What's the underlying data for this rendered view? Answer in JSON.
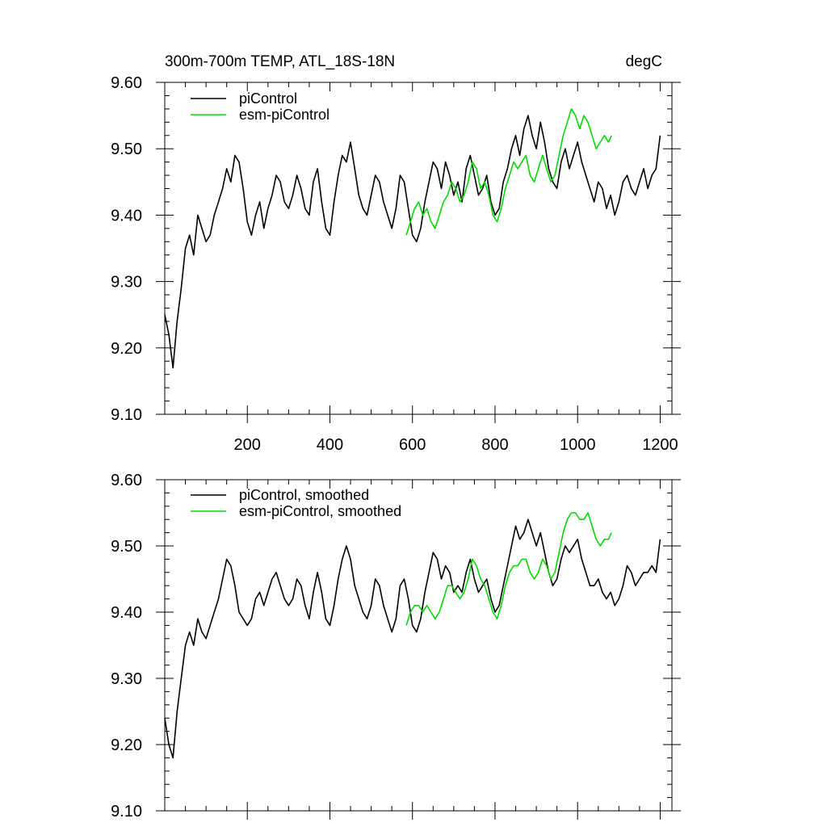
{
  "title_left": "300m-700m TEMP, ATL_18S-18N",
  "title_right": "degC",
  "colors": {
    "picontrol": "#000000",
    "esm_picontrol": "#00dd00"
  },
  "chart_data": [
    {
      "type": "line",
      "panel": "top",
      "title": "300m-700m TEMP, ATL_18S-18N",
      "units": "degC",
      "xlim": [
        0,
        1205
      ],
      "ylim": [
        9.1,
        9.6
      ],
      "xticks": [
        200,
        400,
        600,
        800,
        1000,
        1200
      ],
      "yticks": [
        9.1,
        9.2,
        9.3,
        9.4,
        9.5,
        9.6
      ],
      "ytick_labels": [
        "9.10",
        "9.20",
        "9.30",
        "9.40",
        "9.50",
        "9.60"
      ],
      "grid": false,
      "legend_position": "top-left",
      "series": [
        {
          "name": "piControl",
          "color": "#000000",
          "x": [
            0,
            10,
            20,
            30,
            40,
            50,
            60,
            70,
            80,
            90,
            100,
            110,
            120,
            130,
            140,
            150,
            160,
            170,
            180,
            190,
            200,
            210,
            220,
            230,
            240,
            250,
            260,
            270,
            280,
            290,
            300,
            310,
            320,
            330,
            340,
            350,
            360,
            370,
            380,
            390,
            400,
            410,
            420,
            430,
            440,
            450,
            460,
            470,
            480,
            490,
            500,
            510,
            520,
            530,
            540,
            550,
            560,
            570,
            580,
            590,
            600,
            610,
            620,
            630,
            640,
            650,
            660,
            670,
            680,
            690,
            700,
            710,
            720,
            730,
            740,
            750,
            760,
            770,
            780,
            790,
            800,
            810,
            820,
            830,
            840,
            850,
            860,
            870,
            880,
            890,
            900,
            910,
            920,
            930,
            940,
            950,
            960,
            970,
            980,
            990,
            1000,
            1010,
            1020,
            1030,
            1040,
            1050,
            1060,
            1070,
            1080,
            1090,
            1100,
            1110,
            1120,
            1130,
            1140,
            1150,
            1160,
            1170,
            1180,
            1190,
            1200
          ],
          "y": [
            9.25,
            9.22,
            9.17,
            9.24,
            9.29,
            9.35,
            9.37,
            9.34,
            9.4,
            9.38,
            9.36,
            9.37,
            9.4,
            9.42,
            9.44,
            9.47,
            9.45,
            9.49,
            9.48,
            9.44,
            9.39,
            9.37,
            9.4,
            9.42,
            9.38,
            9.41,
            9.43,
            9.46,
            9.45,
            9.42,
            9.41,
            9.43,
            9.46,
            9.44,
            9.41,
            9.4,
            9.45,
            9.47,
            9.42,
            9.38,
            9.37,
            9.42,
            9.46,
            9.49,
            9.48,
            9.51,
            9.47,
            9.43,
            9.41,
            9.4,
            9.43,
            9.46,
            9.45,
            9.42,
            9.4,
            9.38,
            9.41,
            9.46,
            9.45,
            9.41,
            9.37,
            9.36,
            9.38,
            9.42,
            9.45,
            9.48,
            9.47,
            9.44,
            9.48,
            9.46,
            9.43,
            9.45,
            9.42,
            9.47,
            9.49,
            9.46,
            9.43,
            9.44,
            9.46,
            9.42,
            9.4,
            9.41,
            9.45,
            9.47,
            9.5,
            9.52,
            9.49,
            9.53,
            9.55,
            9.52,
            9.5,
            9.54,
            9.51,
            9.47,
            9.45,
            9.44,
            9.48,
            9.5,
            9.47,
            9.49,
            9.51,
            9.48,
            9.46,
            9.44,
            9.42,
            9.45,
            9.44,
            9.41,
            9.43,
            9.4,
            9.42,
            9.45,
            9.46,
            9.44,
            9.43,
            9.45,
            9.47,
            9.44,
            9.46,
            9.47,
            9.52
          ]
        },
        {
          "name": "esm-piControl",
          "color": "#00dd00",
          "x": [
            585,
            595,
            605,
            615,
            625,
            635,
            645,
            655,
            665,
            675,
            685,
            695,
            705,
            715,
            725,
            735,
            745,
            755,
            765,
            775,
            785,
            795,
            805,
            815,
            825,
            835,
            845,
            855,
            865,
            875,
            885,
            895,
            905,
            915,
            925,
            935,
            945,
            955,
            965,
            975,
            985,
            995,
            1005,
            1015,
            1025,
            1035,
            1045,
            1055,
            1065,
            1075,
            1082
          ],
          "y": [
            9.37,
            9.39,
            9.41,
            9.42,
            9.4,
            9.41,
            9.39,
            9.38,
            9.4,
            9.42,
            9.43,
            9.45,
            9.44,
            9.42,
            9.43,
            9.45,
            9.48,
            9.47,
            9.44,
            9.45,
            9.43,
            9.4,
            9.39,
            9.41,
            9.44,
            9.46,
            9.48,
            9.47,
            9.48,
            9.49,
            9.46,
            9.45,
            9.47,
            9.49,
            9.47,
            9.45,
            9.46,
            9.49,
            9.52,
            9.54,
            9.56,
            9.55,
            9.53,
            9.55,
            9.54,
            9.52,
            9.5,
            9.51,
            9.52,
            9.51,
            9.52
          ]
        }
      ]
    },
    {
      "type": "line",
      "panel": "bottom",
      "xlim": [
        0,
        1205
      ],
      "ylim": [
        9.1,
        9.6
      ],
      "yticks": [
        9.1,
        9.2,
        9.3,
        9.4,
        9.5,
        9.6
      ],
      "ytick_labels": [
        "9.10",
        "9.20",
        "9.30",
        "9.40",
        "9.50",
        "9.60"
      ],
      "grid": false,
      "legend_position": "top-left",
      "series": [
        {
          "name": "piControl, smoothed",
          "color": "#000000",
          "x": [
            0,
            10,
            20,
            30,
            40,
            50,
            60,
            70,
            80,
            90,
            100,
            110,
            120,
            130,
            140,
            150,
            160,
            170,
            180,
            190,
            200,
            210,
            220,
            230,
            240,
            250,
            260,
            270,
            280,
            290,
            300,
            310,
            320,
            330,
            340,
            350,
            360,
            370,
            380,
            390,
            400,
            410,
            420,
            430,
            440,
            450,
            460,
            470,
            480,
            490,
            500,
            510,
            520,
            530,
            540,
            550,
            560,
            570,
            580,
            590,
            600,
            610,
            620,
            630,
            640,
            650,
            660,
            670,
            680,
            690,
            700,
            710,
            720,
            730,
            740,
            750,
            760,
            770,
            780,
            790,
            800,
            810,
            820,
            830,
            840,
            850,
            860,
            870,
            880,
            890,
            900,
            910,
            920,
            930,
            940,
            950,
            960,
            970,
            980,
            990,
            1000,
            1010,
            1020,
            1030,
            1040,
            1050,
            1060,
            1070,
            1080,
            1090,
            1100,
            1110,
            1120,
            1130,
            1140,
            1150,
            1160,
            1170,
            1180,
            1190,
            1200
          ],
          "y": [
            9.24,
            9.2,
            9.18,
            9.25,
            9.3,
            9.35,
            9.37,
            9.35,
            9.39,
            9.37,
            9.36,
            9.38,
            9.4,
            9.42,
            9.45,
            9.48,
            9.47,
            9.44,
            9.4,
            9.39,
            9.38,
            9.39,
            9.42,
            9.43,
            9.41,
            9.43,
            9.45,
            9.46,
            9.44,
            9.42,
            9.41,
            9.42,
            9.45,
            9.44,
            9.41,
            9.39,
            9.43,
            9.46,
            9.43,
            9.39,
            9.38,
            9.41,
            9.45,
            9.48,
            9.5,
            9.48,
            9.44,
            9.42,
            9.4,
            9.39,
            9.41,
            9.45,
            9.44,
            9.41,
            9.39,
            9.37,
            9.39,
            9.44,
            9.45,
            9.42,
            9.38,
            9.37,
            9.39,
            9.43,
            9.46,
            9.49,
            9.48,
            9.45,
            9.47,
            9.46,
            9.43,
            9.44,
            9.43,
            9.46,
            9.48,
            9.45,
            9.43,
            9.44,
            9.45,
            9.42,
            9.4,
            9.41,
            9.44,
            9.47,
            9.5,
            9.53,
            9.51,
            9.52,
            9.54,
            9.52,
            9.5,
            9.52,
            9.49,
            9.46,
            9.44,
            9.45,
            9.48,
            9.5,
            9.49,
            9.5,
            9.51,
            9.48,
            9.46,
            9.44,
            9.44,
            9.45,
            9.43,
            9.42,
            9.43,
            9.41,
            9.42,
            9.44,
            9.47,
            9.46,
            9.44,
            9.45,
            9.46,
            9.46,
            9.47,
            9.46,
            9.51
          ]
        },
        {
          "name": "esm-piControl, smoothed",
          "color": "#00dd00",
          "x": [
            585,
            595,
            605,
            615,
            625,
            635,
            645,
            655,
            665,
            675,
            685,
            695,
            705,
            715,
            725,
            735,
            745,
            755,
            765,
            775,
            785,
            795,
            805,
            815,
            825,
            835,
            845,
            855,
            865,
            875,
            885,
            895,
            905,
            915,
            925,
            935,
            945,
            955,
            965,
            975,
            985,
            995,
            1005,
            1015,
            1025,
            1035,
            1045,
            1055,
            1065,
            1075,
            1082
          ],
          "y": [
            9.38,
            9.4,
            9.41,
            9.41,
            9.4,
            9.41,
            9.4,
            9.39,
            9.4,
            9.42,
            9.44,
            9.44,
            9.43,
            9.42,
            9.43,
            9.45,
            9.48,
            9.47,
            9.45,
            9.44,
            9.42,
            9.4,
            9.39,
            9.41,
            9.44,
            9.46,
            9.47,
            9.47,
            9.48,
            9.48,
            9.46,
            9.45,
            9.46,
            9.48,
            9.47,
            9.45,
            9.46,
            9.49,
            9.52,
            9.54,
            9.55,
            9.55,
            9.54,
            9.54,
            9.55,
            9.53,
            9.51,
            9.5,
            9.51,
            9.51,
            9.52
          ]
        }
      ]
    }
  ]
}
